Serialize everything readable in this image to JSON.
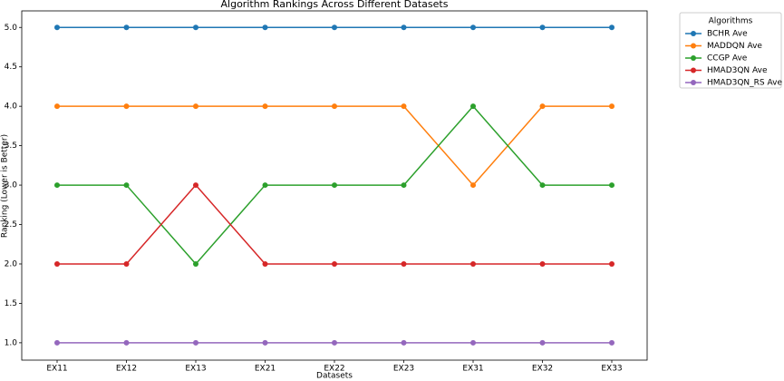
{
  "chart_data": {
    "type": "line",
    "title": "Algorithm Rankings Across Different Datasets",
    "x_label": "Datasets",
    "y_label": "Ranking (Lower is Better)",
    "legend_title": "Algorithms",
    "legend_position": "outside-upper-right",
    "grid": false,
    "categories": [
      "EX11",
      "EX12",
      "EX13",
      "EX21",
      "EX22",
      "EX23",
      "EX31",
      "EX32",
      "EX33"
    ],
    "series": [
      {
        "name": "BCHR Ave",
        "color": "#1f77b4",
        "values": [
          5,
          5,
          5,
          5,
          5,
          5,
          5,
          5,
          5
        ]
      },
      {
        "name": "MADDQN Ave",
        "color": "#ff7f0e",
        "values": [
          4,
          4,
          4,
          4,
          4,
          4,
          3,
          4,
          4
        ]
      },
      {
        "name": "CCGP Ave",
        "color": "#2ca02c",
        "values": [
          3,
          3,
          2,
          3,
          3,
          3,
          4,
          3,
          3
        ]
      },
      {
        "name": "HMAD3QN Ave",
        "color": "#d62728",
        "values": [
          2,
          2,
          3,
          2,
          2,
          2,
          2,
          2,
          2
        ]
      },
      {
        "name": "HMAD3QN_RS Ave",
        "color": "#9467bd",
        "values": [
          1,
          1,
          1,
          1,
          1,
          1,
          1,
          1,
          1
        ]
      }
    ],
    "ylim": [
      0.78,
      5.21
    ],
    "yticks": [
      {
        "value": 1,
        "label": "1.0"
      },
      {
        "value": 1.5,
        "label": "1.5"
      },
      {
        "value": 2,
        "label": "2.0"
      },
      {
        "value": 2.5,
        "label": "2.5"
      },
      {
        "value": 3,
        "label": "3.0"
      },
      {
        "value": 3.5,
        "label": "3.5"
      },
      {
        "value": 4,
        "label": "4.0"
      },
      {
        "value": 4.5,
        "label": "4.5"
      },
      {
        "value": 5,
        "label": "5.0"
      }
    ]
  }
}
